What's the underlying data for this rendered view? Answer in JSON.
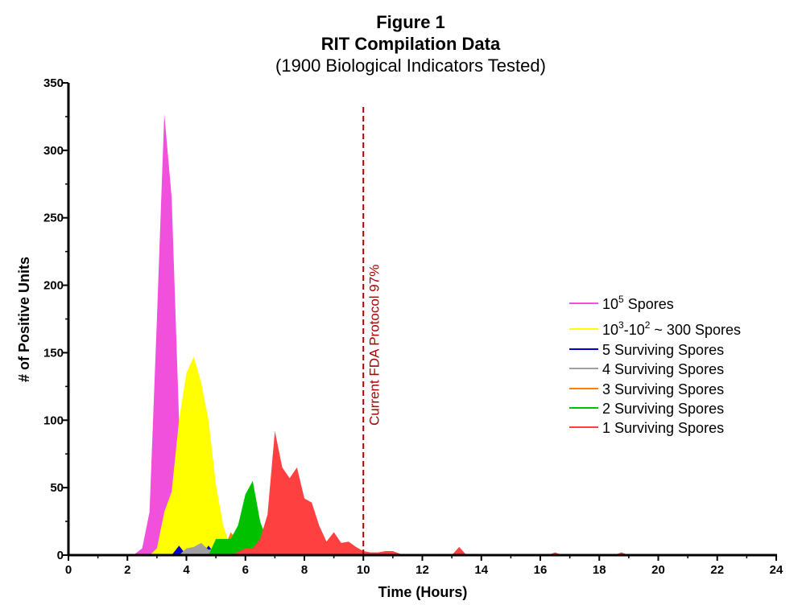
{
  "chart_data": {
    "type": "area",
    "title": "Figure 1",
    "subtitle": "RIT Compilation Data",
    "subtitle2": "(1900 Biological Indicators Tested)",
    "xlabel": "Time (Hours)",
    "ylabel": "# of Positive Units",
    "xlim": [
      0,
      24
    ],
    "ylim": [
      0,
      350
    ],
    "xticks": [
      "0",
      "2",
      "4",
      "6",
      "8",
      "10",
      "12",
      "14",
      "16",
      "18",
      "20",
      "22",
      "24"
    ],
    "yticks": [
      "0",
      "50",
      "100",
      "150",
      "200",
      "250",
      "300",
      "350"
    ],
    "grid": false,
    "legend_position": "right",
    "reference_line": {
      "x": 10,
      "label": "Current FDA Protocol 97%",
      "color": "#aa0000"
    },
    "series": [
      {
        "name": "10^5 Spores",
        "legend": {
          "base": "10",
          "sup": "5",
          "rest": " Spores"
        },
        "color": "#f050dc",
        "x": [
          2.2,
          2.5,
          2.75,
          3.0,
          3.25,
          3.5,
          3.75,
          4.0
        ],
        "y": [
          0,
          5,
          32,
          175,
          327,
          265,
          100,
          0
        ]
      },
      {
        "name": "10^3-10^2 ~ 300 Spores",
        "legend": {
          "base": "10",
          "sup": "3",
          "mid": "-10",
          "sup2": "2",
          "rest": " ~ 300 Spores"
        },
        "color": "#ffff00",
        "x": [
          2.75,
          3.0,
          3.25,
          3.5,
          3.75,
          4.0,
          4.25,
          4.5,
          4.75,
          5.0,
          5.25,
          5.5,
          5.75,
          6.0
        ],
        "y": [
          0,
          5,
          32,
          47,
          100,
          135,
          147,
          128,
          100,
          52,
          22,
          5,
          2,
          0
        ]
      },
      {
        "name": "5 Surviving Spores",
        "color": "#0000cc",
        "x": [
          3.5,
          3.75,
          4.0,
          4.25,
          4.5,
          4.75,
          5.0
        ],
        "y": [
          0,
          7,
          0,
          0,
          0,
          7,
          0
        ]
      },
      {
        "name": "4 Surviving Spores",
        "color": "#a0a0a0",
        "x": [
          3.75,
          4.0,
          4.25,
          4.5,
          4.75,
          5.0,
          5.25,
          5.5,
          5.75,
          6.0
        ],
        "y": [
          0,
          5,
          6,
          9,
          4,
          5,
          5,
          9,
          4,
          0
        ]
      },
      {
        "name": "3 Surviving Spores",
        "color": "#ff8000",
        "x": [
          4.75,
          5.0,
          5.25,
          5.5,
          5.75,
          6.0,
          6.25
        ],
        "y": [
          0,
          5,
          3,
          17,
          10,
          5,
          0
        ]
      },
      {
        "name": "2 Surviving Spores",
        "color": "#00c000",
        "x": [
          4.75,
          5.0,
          5.25,
          5.5,
          5.75,
          6.0,
          6.25,
          6.5,
          6.75,
          7.0,
          7.25,
          7.5
        ],
        "y": [
          0,
          12,
          12,
          12,
          22,
          45,
          55,
          25,
          10,
          5,
          19,
          0
        ]
      },
      {
        "name": "1 Surviving Spores",
        "color": "#ff4040",
        "x": [
          5.5,
          6.0,
          6.25,
          6.5,
          6.75,
          7.0,
          7.25,
          7.5,
          7.75,
          8.0,
          8.25,
          8.5,
          8.75,
          9.0,
          9.25,
          9.5,
          9.75,
          10.0,
          10.25,
          10.5,
          10.75,
          11.0,
          11.25,
          11.5,
          12.0,
          12.5,
          12.75,
          13.0,
          13.25,
          13.5,
          13.75,
          14.0,
          16.0,
          16.25,
          16.5,
          16.75,
          17.0,
          18.5,
          18.75,
          19.0
        ],
        "y": [
          0,
          5,
          5,
          12,
          30,
          92,
          65,
          57,
          65,
          42,
          39,
          22,
          10,
          17,
          9,
          10,
          6,
          3,
          2,
          2,
          3,
          3,
          1,
          0,
          0,
          0,
          1,
          0,
          6,
          0,
          1,
          0,
          0,
          0,
          2,
          0,
          0,
          0,
          2,
          0
        ]
      }
    ]
  }
}
